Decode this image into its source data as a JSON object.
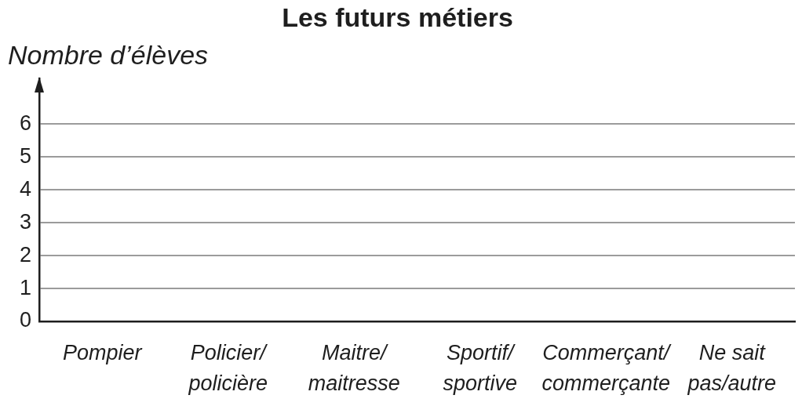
{
  "chart_data": {
    "type": "bar",
    "title": "Les futurs métiers",
    "ylabel": "Nombre d’élèves",
    "categories": [
      "Pompier",
      "Policier/\npolicière",
      "Maitre/\nmaitresse",
      "Sportif/\nsportive",
      "Commerçant/\ncommerçante",
      "Ne sait\npas/autre"
    ],
    "values": [
      null,
      null,
      null,
      null,
      null,
      null
    ],
    "ylim": [
      0,
      7.4
    ],
    "yticks": [
      0,
      1,
      2,
      3,
      4,
      5,
      6
    ],
    "grid": "y"
  }
}
